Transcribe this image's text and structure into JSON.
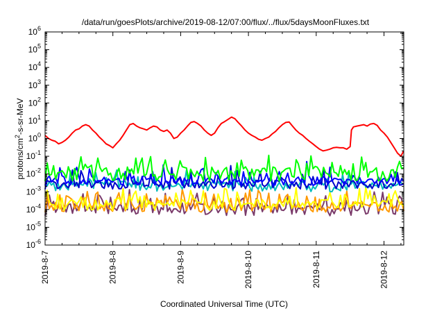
{
  "chart_data": {
    "type": "line",
    "title": "/data/run/goesPlots/archive/2019-08-12/07:00/flux/../flux/5daysMoonFluxes.txt",
    "xlabel": "Coordinated Universal Time (UTC)",
    "ylabel_parts": {
      "base": "protons/cm",
      "sup": "2",
      "rest": "-s-sr-MeV"
    },
    "y_scale": "log",
    "ylim": [
      1e-06,
      1000000.0
    ],
    "y_tick_exponents": [
      -6,
      -5,
      -4,
      -3,
      -2,
      -1,
      0,
      1,
      2,
      3,
      4,
      5,
      6
    ],
    "y_tick_base": "10",
    "xlim": [
      "2019-08-07",
      "2019-08-12 07:00"
    ],
    "x_ticks": [
      "2019-8-7",
      "2019-8-8",
      "2019-8-9",
      "2019-8-10",
      "2019-8-11",
      "2019-8-12"
    ],
    "grid": false,
    "legend": "none",
    "series": [
      {
        "color": "#ff0000",
        "x_days": [
          0.0,
          0.05,
          0.1,
          0.15,
          0.2,
          0.25,
          0.3,
          0.35,
          0.4,
          0.45,
          0.5,
          0.55,
          0.6,
          0.65,
          0.7,
          0.75,
          0.8,
          0.85,
          0.9,
          0.95,
          1.0,
          1.05,
          1.1,
          1.15,
          1.2,
          1.25,
          1.3,
          1.35,
          1.4,
          1.45,
          1.5,
          1.55,
          1.6,
          1.65,
          1.7,
          1.75,
          1.8,
          1.85,
          1.9,
          1.95,
          2.0,
          2.05,
          2.1,
          2.15,
          2.2,
          2.25,
          2.3,
          2.35,
          2.4,
          2.45,
          2.5,
          2.55,
          2.6,
          2.65,
          2.7,
          2.75,
          2.8,
          2.85,
          2.9,
          2.95,
          3.0,
          3.05,
          3.1,
          3.15,
          3.2,
          3.25,
          3.3,
          3.35,
          3.4,
          3.45,
          3.5,
          3.55,
          3.6,
          3.65,
          3.7,
          3.75,
          3.8,
          3.85,
          3.9,
          3.95,
          4.0,
          4.05,
          4.1,
          4.15,
          4.2,
          4.25,
          4.3,
          4.35,
          4.4,
          4.45,
          4.5,
          4.52,
          4.55,
          4.6,
          4.65,
          4.7,
          4.75,
          4.8,
          4.85,
          4.9,
          4.95,
          5.0,
          5.05,
          5.1,
          5.15,
          5.2,
          5.25,
          5.29
        ],
        "values": [
          1.5,
          1.0,
          0.8,
          0.7,
          0.5,
          0.6,
          0.8,
          1.2,
          2.0,
          3.0,
          3.5,
          5.0,
          6.0,
          5.0,
          3.0,
          2.0,
          1.2,
          0.8,
          0.5,
          0.4,
          0.3,
          0.5,
          0.8,
          1.5,
          3.0,
          6.0,
          7.0,
          5.0,
          4.0,
          3.5,
          3.0,
          4.0,
          5.0,
          4.5,
          3.0,
          2.5,
          3.0,
          2.0,
          1.0,
          1.2,
          2.0,
          3.0,
          5.0,
          8.0,
          9.0,
          7.0,
          5.0,
          3.0,
          2.0,
          1.5,
          2.0,
          4.0,
          7.0,
          9.0,
          12.0,
          16.0,
          13.0,
          8.0,
          5.0,
          3.0,
          2.0,
          1.5,
          1.2,
          0.9,
          0.8,
          1.0,
          1.2,
          1.8,
          2.5,
          4.0,
          6.0,
          8.0,
          8.5,
          5.0,
          3.0,
          2.0,
          1.5,
          1.0,
          0.7,
          0.5,
          0.35,
          0.25,
          0.2,
          0.22,
          0.25,
          0.3,
          0.32,
          0.3,
          0.3,
          0.25,
          0.35,
          3.0,
          4.5,
          5.0,
          5.5,
          6.0,
          5.0,
          6.5,
          7.0,
          5.5,
          3.0,
          2.0,
          1.2,
          0.6,
          0.3,
          0.15,
          0.1,
          0.2
        ]
      },
      {
        "color": "#00ff00",
        "base": 0.01,
        "spread": 0.8,
        "spike": 0.3,
        "seed": 11
      },
      {
        "color": "#00bbbb",
        "base": 0.002,
        "spread": 0.6,
        "spike": 0.2,
        "seed": 23
      },
      {
        "color": "#0000ff",
        "base": 0.004,
        "spread": 0.5,
        "spike": 0.25,
        "seed": 5
      },
      {
        "color": "#0000cc",
        "base": 0.0025,
        "spread": 0.5,
        "spike": 0.2,
        "seed": 41
      },
      {
        "color": "#ffff00",
        "base": 0.00018,
        "spread": 0.6,
        "spike": 0.35,
        "seed": 17
      },
      {
        "color": "#ff9900",
        "base": 0.00014,
        "spread": 0.6,
        "spike": 0.35,
        "seed": 29
      },
      {
        "color": "#7a3a6a",
        "base": 0.0001,
        "spread": 0.7,
        "spike": 0.4,
        "seed": 37
      }
    ]
  }
}
